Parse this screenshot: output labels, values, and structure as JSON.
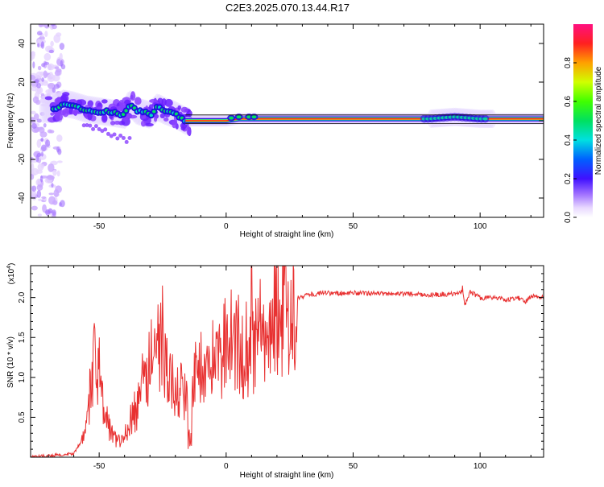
{
  "title": "C2E3.2025.070.13.44.R17",
  "chart_data": [
    {
      "type": "heatmap",
      "xlabel": "Height of straight line (km)",
      "ylabel": "Frequency (Hz)",
      "xlim": [
        -77,
        125
      ],
      "ylim": [
        -50,
        50
      ],
      "xticks": [
        -50,
        0,
        50,
        100
      ],
      "yticks": [
        -40,
        -20,
        0,
        20,
        40
      ],
      "ridge": {
        "x": [
          -68,
          -64,
          -60,
          -55,
          -50,
          -45,
          -40,
          -38,
          -35,
          -30,
          -27,
          -24,
          -20,
          -16,
          -10,
          0,
          5,
          10,
          20,
          40,
          60,
          80,
          90,
          100,
          110,
          125
        ],
        "y": [
          6,
          9,
          8,
          6,
          5,
          4,
          3,
          9,
          5,
          3,
          7,
          5,
          3,
          0,
          0,
          0,
          1,
          1,
          1,
          1,
          1,
          1,
          2,
          1,
          1,
          1
        ]
      },
      "colorbar": {
        "label": "Normalized spectral amplitude",
        "range": [
          0,
          1
        ],
        "ticks": [
          "0.0",
          "0.2",
          "0.4",
          "0.6",
          "0.8"
        ]
      }
    },
    {
      "type": "line",
      "xlabel": "Height of straight line (km)",
      "ylabel": "SNR (10 * v/v)",
      "multiplier": "(x10",
      "multiplier_exp": "4",
      "multiplier_close": ")",
      "xlim": [
        -77,
        125
      ],
      "ylim": [
        0,
        2.4
      ],
      "xticks": [
        -50,
        0,
        50,
        100
      ],
      "yticks": [
        "0.5",
        "1.0",
        "1.5",
        "2.0"
      ],
      "color": "#e83030",
      "envelope": {
        "x": [
          -77,
          -60,
          -57,
          -55,
          -53,
          -52,
          -50,
          -48,
          -45,
          -42,
          -40,
          -36,
          -32,
          -30,
          -28,
          -26,
          -24,
          -22,
          -20,
          -18,
          -16,
          -14,
          -12,
          -10,
          -8,
          -5,
          -2,
          0,
          3,
          6,
          8,
          10,
          12,
          14,
          18,
          22,
          26,
          30,
          35,
          40,
          50,
          60,
          70,
          80,
          90,
          93,
          94,
          96,
          100,
          105,
          110,
          115,
          118,
          120,
          125
        ],
        "y": [
          0.0,
          0.05,
          0.2,
          0.5,
          1.0,
          1.3,
          1.0,
          0.55,
          0.3,
          0.2,
          0.3,
          0.6,
          0.9,
          1.2,
          1.4,
          1.5,
          1.3,
          1.0,
          0.9,
          0.85,
          0.8,
          1.0,
          1.1,
          1.15,
          1.25,
          1.3,
          1.4,
          1.45,
          1.55,
          1.5,
          1.1,
          1.35,
          1.55,
          1.7,
          1.8,
          1.9,
          1.98,
          2.02,
          2.05,
          2.06,
          2.06,
          2.05,
          2.05,
          2.04,
          2.05,
          2.08,
          1.9,
          2.08,
          2.0,
          2.0,
          1.98,
          2.0,
          1.95,
          2.02,
          2.0
        ]
      },
      "peaks": {
        "x": [
          -52,
          -50,
          -33,
          -28,
          -25,
          -24,
          -22,
          -20,
          -17,
          -14,
          8,
          10,
          12,
          14,
          93
        ],
        "y": [
          1.68,
          1.5,
          1.3,
          1.45,
          2.15,
          1.55,
          1.3,
          1.0,
          0.8,
          0.1,
          1.95,
          2.4,
          1.6,
          1.8,
          2.15
        ]
      }
    }
  ]
}
